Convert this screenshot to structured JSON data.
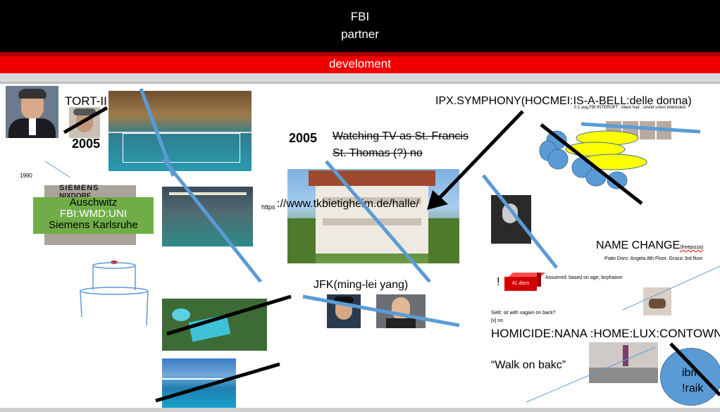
{
  "header": {
    "line1": "FBI",
    "line2": "partner"
  },
  "redbar": {
    "label": "develoment"
  },
  "left": {
    "tort": "TORT-II",
    "year_2005_left": "2005",
    "year_1990": "1990",
    "siemens_logo": "SIEMENS",
    "nixdorf_logo": "NIXDORF",
    "green_box": [
      "Auschwitz",
      "FBI:WMD:UNI",
      "Siemens Karlsruhe"
    ]
  },
  "center": {
    "year_2005": "2005",
    "watching": "Watching TV as St. Francis",
    "thomas": "St. Thomas (?) no",
    "url_prefix": "https",
    "url": "://www.tkbietigheim.de/halle/",
    "jfk": "JFK(ming-lei yang)"
  },
  "right": {
    "ipx": "IPX.SYMPHONY(HOCMEI:IS-A-BELL:delle donna)",
    "ipx_note": "0.1 avg.FBI:INTERUPT : black hair : soviet union interested",
    "name_change": "NAME CHANGE",
    "freepizza": "(freepizza)",
    "piato": "Piato Doro: Angela.8th Floor. Grazzi 3rd floor",
    "exclaim": "!",
    "docs": "41.docs",
    "assuemd": "Assuemd: based on age, boyhaixor",
    "sielt": "Sielt: sit with vagain on back?",
    "x_no": "[x] no",
    "homicide": "HOMICIDE:NANA :HOME:LUX:CONTOWN",
    "walk": "“Walk on bakc”",
    "circle_l1": "ibm.",
    "circle_l2": "!raik"
  },
  "colors": {
    "blue_line": "#5b9bd5",
    "red": "#f20000",
    "green_box": "#70ad47",
    "ellipse_yellow": "#ffff00",
    "ellipse_blue": "#5b9bd5"
  }
}
